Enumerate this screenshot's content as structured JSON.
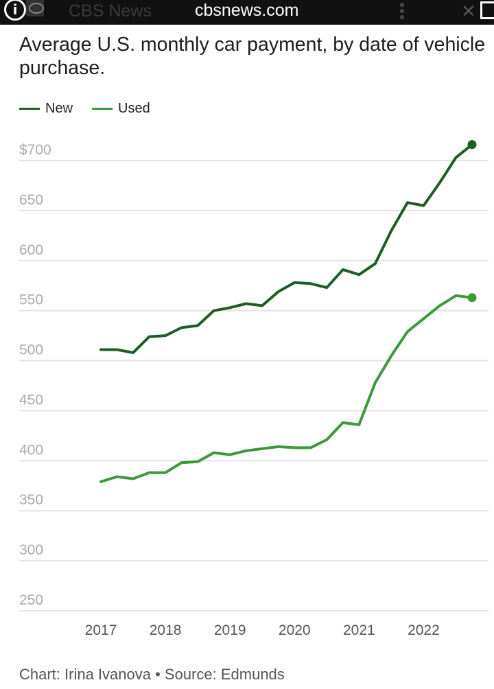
{
  "browser": {
    "site_name": "CBS News",
    "url": "cbsnews.com",
    "icons": [
      "info-icon",
      "site-logo",
      "more-vertical-icon",
      "close-icon",
      "share-icon"
    ]
  },
  "title": "Average U.S. monthly car payment, by date of vehicle purchase.",
  "credit": "Chart: Irina Ivanova • Source: Edmunds",
  "colors": {
    "new": "#1f5c26",
    "used": "#3c9a3a",
    "grid": "#e3e3e3",
    "tick": "#aaaaaa",
    "xtick": "#555555"
  },
  "chart_data": {
    "type": "line",
    "title": "Average U.S. monthly car payment, by date of vehicle purchase.",
    "xlabel": "",
    "ylabel": "",
    "x": [
      2017.0,
      2017.25,
      2017.5,
      2017.75,
      2018.0,
      2018.25,
      2018.5,
      2018.75,
      2019.0,
      2019.25,
      2019.5,
      2019.75,
      2020.0,
      2020.25,
      2020.5,
      2020.75,
      2021.0,
      2021.25,
      2021.5,
      2021.75,
      2022.0,
      2022.25,
      2022.5,
      2022.75
    ],
    "series": [
      {
        "name": "New",
        "values": [
          511,
          511,
          508,
          524,
          525,
          533,
          535,
          550,
          553,
          557,
          555,
          569,
          578,
          577,
          573,
          591,
          586,
          597,
          630,
          658,
          655,
          678,
          703,
          716
        ]
      },
      {
        "name": "Used",
        "values": [
          379,
          384,
          382,
          388,
          388,
          398,
          399,
          408,
          406,
          410,
          412,
          414,
          413,
          413,
          421,
          438,
          436,
          478,
          505,
          529,
          542,
          555,
          565,
          563
        ]
      }
    ],
    "xticks": [
      2017,
      2018,
      2019,
      2020,
      2021,
      2022
    ],
    "xtick_labels": [
      "2017",
      "2018",
      "2019",
      "2020",
      "2021",
      "2022"
    ],
    "yticks": [
      250,
      300,
      350,
      400,
      450,
      500,
      550,
      600,
      650,
      700
    ],
    "ytick_labels": [
      "250",
      "300",
      "350",
      "400",
      "450",
      "500",
      "550",
      "600",
      "650",
      "$700"
    ],
    "xlim": [
      2016.75,
      2023.0
    ],
    "ylim": [
      240,
      730
    ],
    "grid": true,
    "legend": "top-left"
  }
}
